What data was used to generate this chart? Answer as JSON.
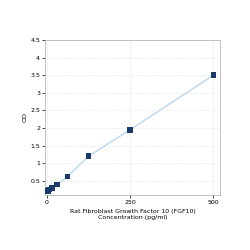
{
  "title_line1": "Rat Fibroblast Growth Factor 10 (FGF10)",
  "title_line2": "Concentration (pg/ml)",
  "ylabel": "OD",
  "x_values": [
    0,
    3.9,
    7.8,
    15.6,
    31.25,
    62.5,
    125,
    250,
    500
  ],
  "y_values": [
    0.2,
    0.22,
    0.25,
    0.3,
    0.4,
    0.62,
    1.2,
    1.95,
    3.5
  ],
  "line_color": "#b8d8ee",
  "marker_color": "#1a3a6b",
  "marker_size": 4,
  "ylim": [
    0.1,
    4.5
  ],
  "xlim": [
    -5,
    520
  ],
  "yticks": [
    0.5,
    1.0,
    1.5,
    2.0,
    2.5,
    3.0,
    3.5,
    4.0,
    4.5
  ],
  "ytick_labels": [
    "0.5",
    "1",
    "1.5",
    "2",
    "2.5",
    "3",
    "3.5",
    "4",
    "4.5"
  ],
  "xticks": [
    0,
    250,
    500
  ],
  "xtick_labels": [
    "0",
    "250",
    "500"
  ],
  "grid_color": "#d8d8d8",
  "bg_color": "#ffffff",
  "fig_bg_color": "#ffffff",
  "label_fontsize": 4.5,
  "tick_fontsize": 4.5
}
